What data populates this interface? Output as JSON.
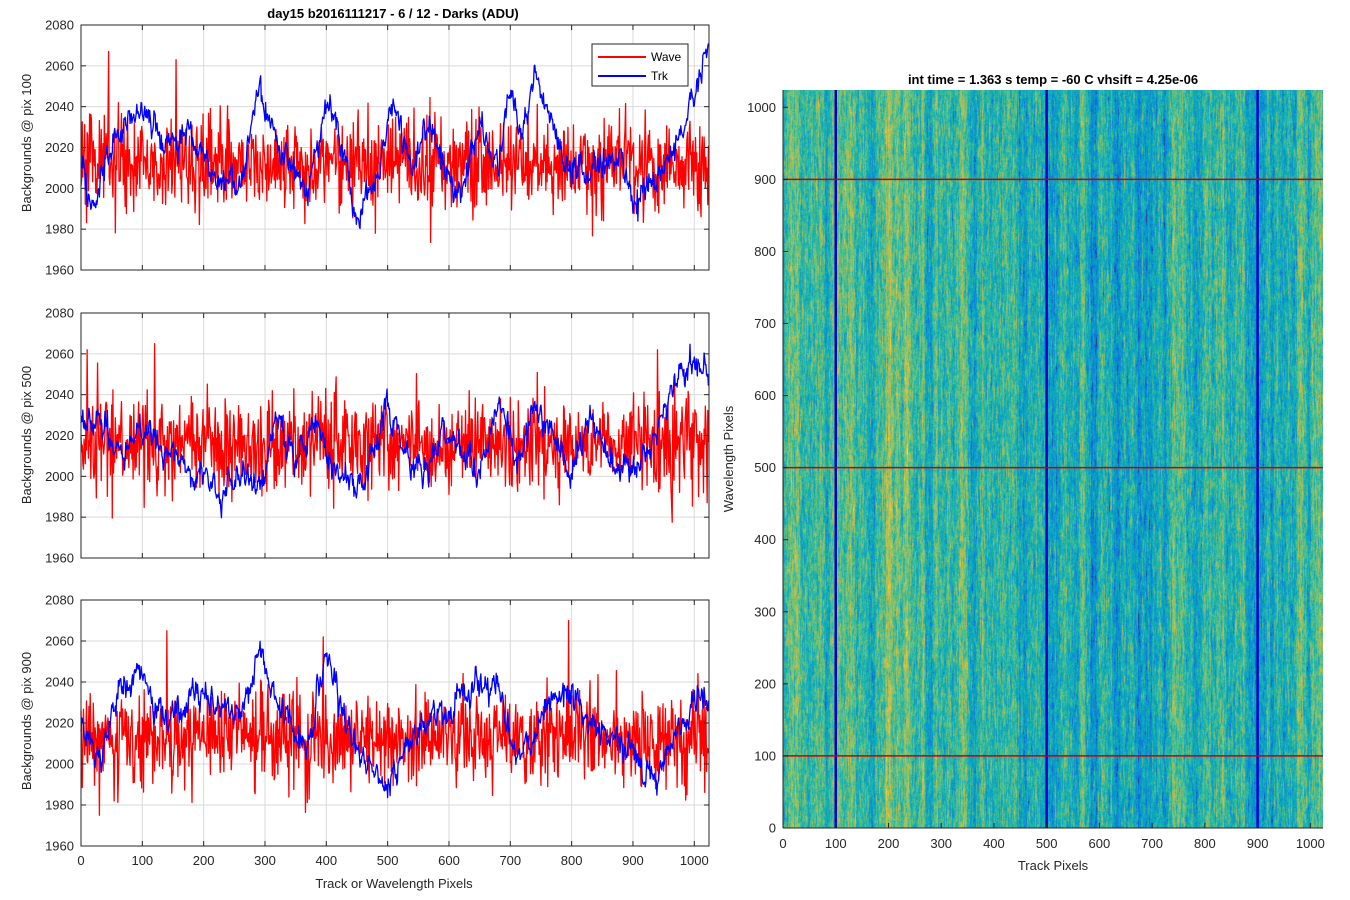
{
  "figure_title": "day15 b2016111217 - 6 / 12 - Darks (ADU)",
  "colors": {
    "wave": "#ff0000",
    "trk": "#0000ff",
    "grid": "#d9d9d9",
    "axis": "#262626"
  },
  "chart_data": [
    {
      "type": "line",
      "title": "day15 b2016111217 - 6 / 12 - Darks (ADU)",
      "xlabel": "",
      "ylabel": "Backgrounds @ pix 100",
      "xlim": [
        0,
        1024
      ],
      "ylim": [
        1960,
        2080
      ],
      "xticks": [
        0,
        100,
        200,
        300,
        400,
        500,
        600,
        700,
        800,
        900,
        1000
      ],
      "yticks": [
        1960,
        1980,
        2000,
        2020,
        2040,
        2060,
        2080
      ],
      "grid": true,
      "legend": {
        "position": "top-right",
        "entries": [
          "Wave",
          "Trk"
        ]
      },
      "series": [
        {
          "name": "Wave",
          "color": "#ff0000",
          "noise": "high-frequency",
          "mean": 2012,
          "spread": 16,
          "extremes": [
            [
              45,
              2067
            ],
            [
              155,
              2063
            ],
            [
              480,
              1978
            ],
            [
              1022,
              1992
            ]
          ]
        },
        {
          "name": "Trk",
          "color": "#0000ff",
          "noise": "smooth",
          "x": [
            0,
            20,
            40,
            70,
            100,
            140,
            180,
            220,
            260,
            290,
            320,
            350,
            370,
            400,
            420,
            450,
            480,
            510,
            540,
            570,
            590,
            620,
            650,
            680,
            700,
            720,
            740,
            760,
            780,
            800,
            820,
            850,
            880,
            900,
            930,
            960,
            990,
            1010,
            1024
          ],
          "y": [
            2010,
            1990,
            2015,
            2030,
            2040,
            2020,
            2030,
            2005,
            2000,
            2050,
            2020,
            2005,
            2000,
            2040,
            2030,
            1985,
            2005,
            2045,
            2010,
            2035,
            2010,
            2000,
            2030,
            2010,
            2050,
            2025,
            2060,
            2040,
            2020,
            2005,
            2010,
            2010,
            2020,
            1990,
            2005,
            2015,
            2035,
            2055,
            2068
          ]
        }
      ]
    },
    {
      "type": "line",
      "title": "",
      "xlabel": "",
      "ylabel": "Backgrounds @ pix 500",
      "xlim": [
        0,
        1024
      ],
      "ylim": [
        1960,
        2080
      ],
      "xticks": [
        0,
        100,
        200,
        300,
        400,
        500,
        600,
        700,
        800,
        900,
        1000
      ],
      "yticks": [
        1960,
        1980,
        2000,
        2020,
        2040,
        2060,
        2080
      ],
      "grid": true,
      "series": [
        {
          "name": "Wave",
          "color": "#ff0000",
          "noise": "high-frequency",
          "mean": 2015,
          "spread": 16,
          "extremes": [
            [
              10,
              2062
            ],
            [
              120,
              2065
            ],
            [
              940,
              2062
            ],
            [
              1015,
              1992
            ]
          ]
        },
        {
          "name": "Trk",
          "color": "#0000ff",
          "noise": "smooth",
          "x": [
            0,
            30,
            60,
            100,
            150,
            200,
            230,
            260,
            290,
            320,
            350,
            380,
            420,
            460,
            500,
            530,
            560,
            590,
            620,
            650,
            680,
            710,
            740,
            770,
            800,
            830,
            860,
            900,
            940,
            970,
            1000,
            1024
          ],
          "y": [
            2025,
            2030,
            2010,
            2025,
            2010,
            2000,
            1990,
            2005,
            1990,
            2030,
            2005,
            2030,
            2000,
            1995,
            2035,
            2010,
            2000,
            2025,
            2015,
            2000,
            2040,
            2005,
            2035,
            2020,
            2000,
            2030,
            2010,
            2000,
            2025,
            2045,
            2060,
            2048
          ]
        }
      ]
    },
    {
      "type": "line",
      "title": "",
      "xlabel": "Track or Wavelength Pixels",
      "ylabel": "Backgrounds @ pix 900",
      "xlim": [
        0,
        1024
      ],
      "ylim": [
        1960,
        2080
      ],
      "xticks": [
        0,
        100,
        200,
        300,
        400,
        500,
        600,
        700,
        800,
        900,
        1000
      ],
      "yticks": [
        1960,
        1980,
        2000,
        2020,
        2040,
        2060,
        2080
      ],
      "grid": true,
      "series": [
        {
          "name": "Wave",
          "color": "#ff0000",
          "noise": "high-frequency",
          "mean": 2012,
          "spread": 16,
          "extremes": [
            [
              140,
              2065
            ],
            [
              395,
              2062
            ],
            [
              795,
              2070
            ],
            [
              30,
              1975
            ]
          ]
        },
        {
          "name": "Trk",
          "color": "#0000ff",
          "noise": "smooth",
          "x": [
            0,
            30,
            60,
            100,
            140,
            180,
            220,
            260,
            290,
            330,
            370,
            400,
            430,
            470,
            500,
            530,
            560,
            600,
            640,
            680,
            710,
            740,
            770,
            800,
            830,
            860,
            900,
            940,
            970,
            1000,
            1024
          ],
          "y": [
            2020,
            2000,
            2035,
            2045,
            2020,
            2035,
            2030,
            2025,
            2055,
            2025,
            2005,
            2055,
            2020,
            2000,
            1985,
            2010,
            2020,
            2025,
            2040,
            2035,
            2005,
            2015,
            2035,
            2030,
            2020,
            2015,
            2005,
            1990,
            2015,
            2030,
            2035
          ]
        }
      ]
    },
    {
      "type": "heatmap",
      "title": "int time = 1.363 s   temp = -60 C   vhsift = 4.25e-06",
      "xlabel": "Track Pixels",
      "ylabel": "Wavelength Pixels",
      "xlim": [
        0,
        1024
      ],
      "ylim": [
        0,
        1024
      ],
      "xticks": [
        0,
        100,
        200,
        300,
        400,
        500,
        600,
        700,
        800,
        900,
        1000
      ],
      "yticks": [
        0,
        100,
        200,
        300,
        400,
        500,
        600,
        700,
        800,
        900,
        1000
      ],
      "colormap": "parula",
      "vertical_markers": [
        100,
        500,
        900
      ],
      "vertical_marker_color": "#0000cc",
      "horizontal_markers": [
        100,
        500,
        900
      ],
      "horizontal_marker_color": "#cc0000"
    }
  ]
}
